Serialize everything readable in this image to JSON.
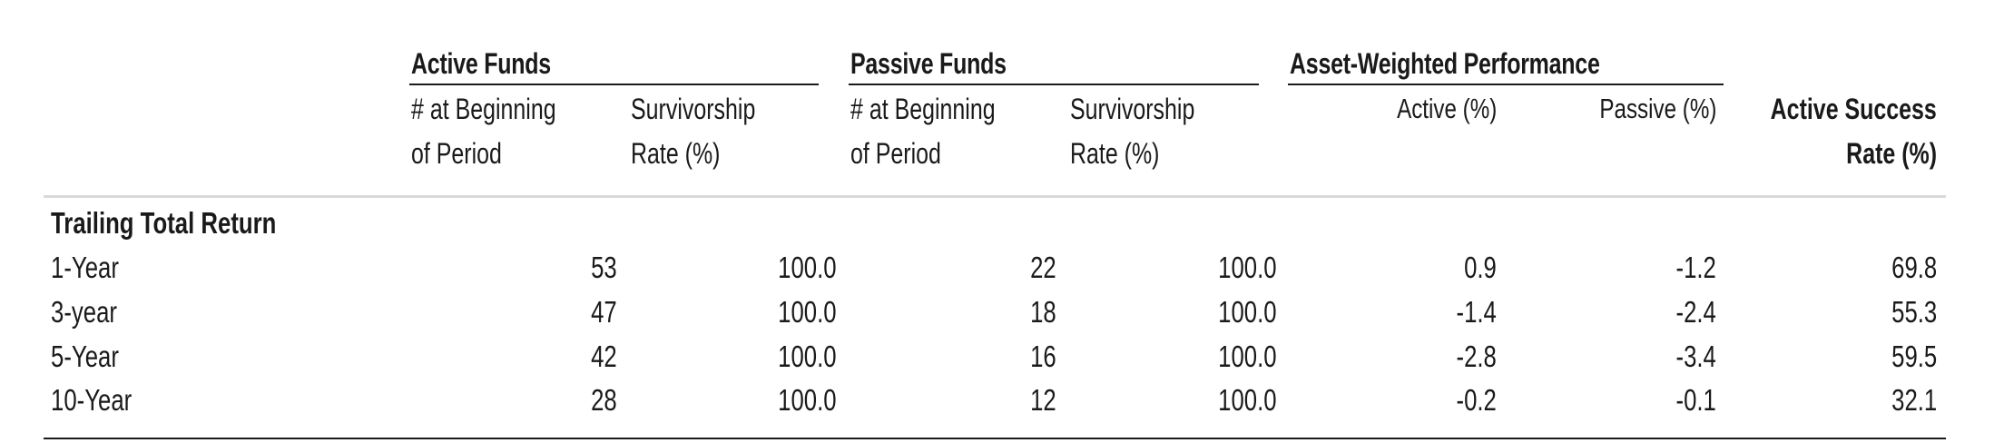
{
  "header": {
    "groups": {
      "active_funds": "Active Funds",
      "passive_funds": "Passive Funds",
      "asset_weighted": "Asset-Weighted Performance"
    },
    "columns": {
      "active_count": [
        "# at Beginning",
        "of Period"
      ],
      "active_surv": [
        "Survivorship",
        "Rate (%)"
      ],
      "passive_count": [
        "# at Beginning",
        "of Period"
      ],
      "passive_surv": [
        "Survivorship",
        "Rate (%)"
      ],
      "aw_active": "Active (%)",
      "aw_passive": "Passive (%)",
      "success": [
        "Active Success",
        "Rate (%)"
      ]
    }
  },
  "section_title": "Trailing Total Return",
  "rows": [
    {
      "label": "1-Year",
      "values": [
        "53",
        "100.0",
        "22",
        "100.0",
        "0.9",
        "-1.2",
        "69.8"
      ]
    },
    {
      "label": "3-year",
      "values": [
        "47",
        "100.0",
        "18",
        "100.0",
        "-1.4",
        "-2.4",
        "55.3"
      ]
    },
    {
      "label": "5-Year",
      "values": [
        "42",
        "100.0",
        "16",
        "100.0",
        "-2.8",
        "-3.4",
        "59.5"
      ]
    },
    {
      "label": "10-Year",
      "values": [
        "28",
        "100.0",
        "12",
        "100.0",
        "-0.2",
        "-0.1",
        "32.1"
      ]
    }
  ],
  "colors": {
    "text": "#1a1a1a",
    "rule_dark": "#1a1a1a",
    "rule_light": "#d9d9d9"
  }
}
